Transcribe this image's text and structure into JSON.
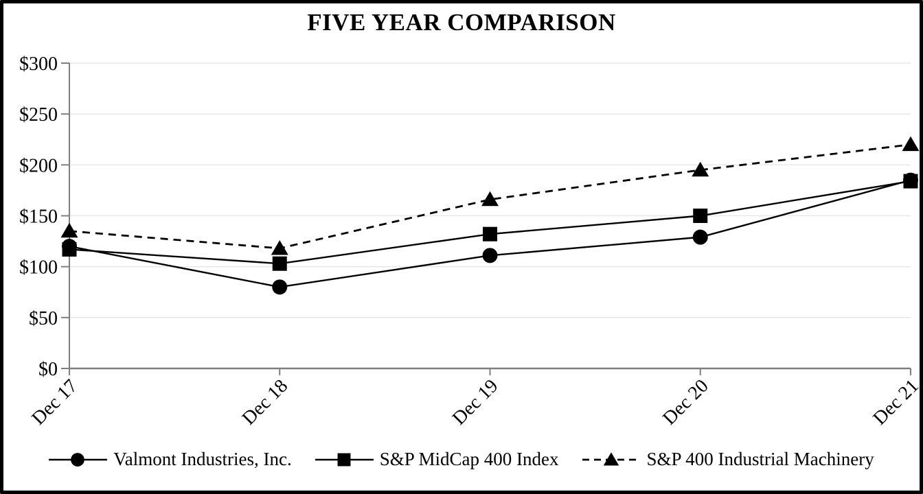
{
  "title_block": {
    "note": "single chart page"
  },
  "colors": {
    "series": "#000000",
    "axis": "#7f7f7f",
    "gridline": "#e8e8e8",
    "background": "#ffffff",
    "border": "#000000",
    "text": "#000000"
  },
  "chart_data": {
    "type": "line",
    "title": "FIVE YEAR COMPARISON",
    "categories": [
      "Dec 17",
      "Dec 18",
      "Dec 19",
      "Dec 20",
      "Dec 21"
    ],
    "series": [
      {
        "name": "Valmont Industries, Inc.",
        "marker": "circle",
        "line": "solid",
        "values": [
          120,
          80,
          111,
          129,
          185
        ]
      },
      {
        "name": "S&P MidCap 400 Index",
        "marker": "square",
        "line": "solid",
        "values": [
          117,
          103,
          132,
          150,
          184
        ]
      },
      {
        "name": "S&P 400 Industrial Machinery",
        "marker": "triangle",
        "line": "dashed",
        "values": [
          135,
          118,
          166,
          195,
          220
        ]
      }
    ],
    "xlabel": "",
    "ylabel": "",
    "ylim": [
      0,
      300
    ],
    "y_tick_step": 50,
    "y_tick_labels": [
      "$0",
      "$50",
      "$100",
      "$150",
      "$200",
      "$250",
      "$300"
    ],
    "grid": "horizontal",
    "legend_position": "bottom"
  }
}
